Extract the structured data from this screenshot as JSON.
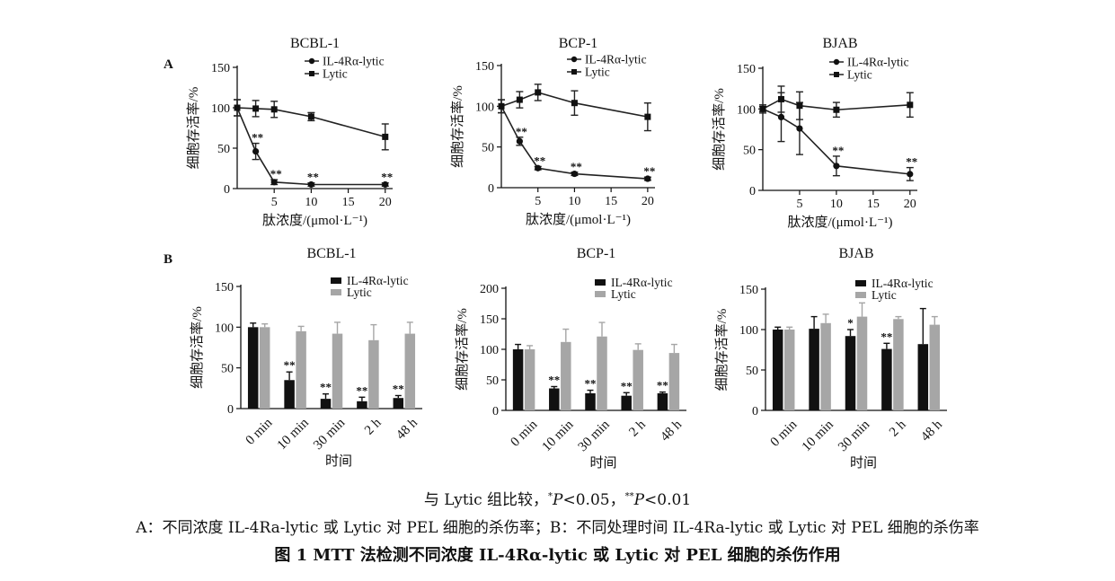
{
  "panel_labels": {
    "a": "A",
    "b": "B"
  },
  "colors": {
    "black_bar": "#111111",
    "gray_bar": "#a6a6a6",
    "line": "#222222"
  },
  "chart_data": [
    {
      "type": "line",
      "panel": "A",
      "title": "BCBL-1",
      "xlabel": "肽浓度/(μmol·L⁻¹)",
      "ylabel": "细胞存活率/%",
      "xlim": [
        0,
        21
      ],
      "ylim": [
        0,
        150
      ],
      "xticks": [
        5,
        10,
        15,
        20
      ],
      "yticks": [
        0,
        50,
        100,
        150
      ],
      "legend_position": "top-right",
      "series": [
        {
          "name": "IL-4Rα-lytic",
          "marker": "circle",
          "points": [
            {
              "x": 0,
              "y": 100,
              "err": 10,
              "sig": ""
            },
            {
              "x": 2.5,
              "y": 46,
              "err": 10,
              "sig": "**"
            },
            {
              "x": 5,
              "y": 8,
              "err": 3,
              "sig": "**"
            },
            {
              "x": 10,
              "y": 5,
              "err": 2,
              "sig": "**"
            },
            {
              "x": 20,
              "y": 5,
              "err": 2,
              "sig": "**"
            }
          ]
        },
        {
          "name": "Lytic",
          "marker": "square",
          "points": [
            {
              "x": 0,
              "y": 100,
              "err": 10
            },
            {
              "x": 2.5,
              "y": 99,
              "err": 10
            },
            {
              "x": 5,
              "y": 98,
              "err": 10
            },
            {
              "x": 10,
              "y": 89,
              "err": 5
            },
            {
              "x": 20,
              "y": 64,
              "err": 16
            }
          ]
        }
      ]
    },
    {
      "type": "line",
      "panel": "A",
      "title": "BCP-1",
      "xlabel": "肽浓度/(μmol·L⁻¹)",
      "ylabel": "细胞存活率/%",
      "xlim": [
        0,
        21
      ],
      "ylim": [
        0,
        150
      ],
      "xticks": [
        5,
        10,
        15,
        20
      ],
      "yticks": [
        0,
        50,
        100,
        150
      ],
      "legend_position": "top-right",
      "series": [
        {
          "name": "IL-4Rα-lytic",
          "marker": "circle",
          "points": [
            {
              "x": 0,
              "y": 100,
              "err": 8,
              "sig": ""
            },
            {
              "x": 2.5,
              "y": 57,
              "err": 5,
              "sig": "**"
            },
            {
              "x": 5,
              "y": 24,
              "err": 2,
              "sig": "**"
            },
            {
              "x": 10,
              "y": 17,
              "err": 2,
              "sig": "**"
            },
            {
              "x": 20,
              "y": 11,
              "err": 2,
              "sig": "**"
            }
          ]
        },
        {
          "name": "Lytic",
          "marker": "square",
          "points": [
            {
              "x": 0,
              "y": 100,
              "err": 8
            },
            {
              "x": 2.5,
              "y": 108,
              "err": 10
            },
            {
              "x": 5,
              "y": 117,
              "err": 10
            },
            {
              "x": 10,
              "y": 104,
              "err": 15
            },
            {
              "x": 20,
              "y": 87,
              "err": 17
            }
          ]
        }
      ]
    },
    {
      "type": "line",
      "panel": "A",
      "title": "BJAB",
      "xlabel": "肽浓度/(μmol·L⁻¹)",
      "ylabel": "细胞存活率/%",
      "xlim": [
        0,
        21
      ],
      "ylim": [
        0,
        150
      ],
      "xticks": [
        5,
        10,
        15,
        20
      ],
      "yticks": [
        0,
        50,
        100,
        150
      ],
      "legend_position": "top-right",
      "series": [
        {
          "name": "IL-4Rα-lytic",
          "marker": "circle",
          "points": [
            {
              "x": 0,
              "y": 100,
              "err": 3,
              "sig": ""
            },
            {
              "x": 2.5,
              "y": 90,
              "err": 30,
              "sig": ""
            },
            {
              "x": 5,
              "y": 76,
              "err": 32,
              "sig": ""
            },
            {
              "x": 10,
              "y": 30,
              "err": 12,
              "sig": "**"
            },
            {
              "x": 20,
              "y": 20,
              "err": 8,
              "sig": "**"
            }
          ]
        },
        {
          "name": "Lytic",
          "marker": "square",
          "points": [
            {
              "x": 0,
              "y": 100,
              "err": 5
            },
            {
              "x": 2.5,
              "y": 112,
              "err": 16
            },
            {
              "x": 5,
              "y": 104,
              "err": 17
            },
            {
              "x": 10,
              "y": 99,
              "err": 9
            },
            {
              "x": 20,
              "y": 105,
              "err": 15
            }
          ]
        }
      ]
    },
    {
      "type": "bar",
      "panel": "B",
      "title": "BCBL-1",
      "xlabel": "时间",
      "ylabel": "细胞存活率/%",
      "ylim": [
        0,
        150
      ],
      "yticks": [
        0,
        50,
        100,
        150
      ],
      "categories": [
        "0 min",
        "10 min",
        "30 min",
        "2 h",
        "48 h"
      ],
      "legend_position": "top-right",
      "series": [
        {
          "name": "IL-4Rα-lytic",
          "values": [
            100,
            35,
            12,
            9,
            13
          ],
          "errors": [
            5,
            10,
            6,
            5,
            3
          ],
          "sig": [
            "",
            "**",
            "**",
            "**",
            "**"
          ]
        },
        {
          "name": "Lytic",
          "values": [
            100,
            95,
            92,
            84,
            92
          ],
          "errors": [
            4,
            6,
            14,
            19,
            14
          ]
        }
      ]
    },
    {
      "type": "bar",
      "panel": "B",
      "title": "BCP-1",
      "xlabel": "时间",
      "ylabel": "细胞存活率/%",
      "ylim": [
        0,
        200
      ],
      "yticks": [
        0,
        50,
        100,
        150,
        200
      ],
      "categories": [
        "0 min",
        "10 min",
        "30 min",
        "2 h",
        "48 h"
      ],
      "legend_position": "top-right",
      "series": [
        {
          "name": "IL-4Rα-lytic",
          "values": [
            100,
            36,
            28,
            24,
            28
          ],
          "errors": [
            8,
            3,
            5,
            5,
            2
          ],
          "sig": [
            "",
            "**",
            "**",
            "**",
            "**"
          ]
        },
        {
          "name": "Lytic",
          "values": [
            100,
            112,
            121,
            99,
            94
          ],
          "errors": [
            6,
            21,
            23,
            10,
            14
          ]
        }
      ]
    },
    {
      "type": "bar",
      "panel": "B",
      "title": "BJAB",
      "xlabel": "时间",
      "ylabel": "细胞存活率/%",
      "ylim": [
        0,
        150
      ],
      "yticks": [
        0,
        50,
        100,
        150
      ],
      "categories": [
        "0 min",
        "10 min",
        "30 min",
        "2 h",
        "48 h"
      ],
      "legend_position": "top-right",
      "series": [
        {
          "name": "IL-4Rα-lytic",
          "values": [
            100,
            101,
            92,
            76,
            82
          ],
          "errors": [
            3,
            15,
            8,
            7,
            44
          ],
          "sig": [
            "",
            "",
            "*",
            "**",
            ""
          ]
        },
        {
          "name": "Lytic",
          "values": [
            100,
            108,
            116,
            113,
            106
          ],
          "errors": [
            3,
            11,
            17,
            3,
            10
          ]
        }
      ]
    }
  ],
  "captions": {
    "line1_prefix": "与 Lytic 组比较，",
    "line1_star1": "*",
    "line1_p1": "P",
    "line1_v1": "<0.05，",
    "line1_star2": "**",
    "line1_p2": "P",
    "line1_v2": "<0.01",
    "line2": "A：不同浓度 IL-4Ra-lytic 或 Lytic 对 PEL 细胞的杀伤率；B：不同处理时间 IL-4Ra-lytic 或 Lytic 对 PEL 细胞的杀伤率",
    "line3": "图 1  MTT 法检测不同浓度 IL-4Rα-lytic 或 Lytic 对 PEL 细胞的杀伤作用"
  }
}
